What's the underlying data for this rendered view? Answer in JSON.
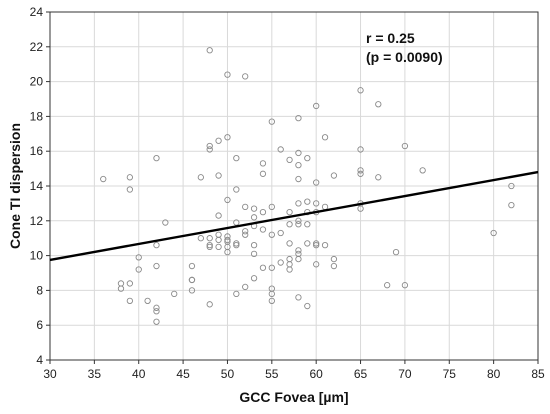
{
  "chart_data": {
    "type": "scatter",
    "xlabel": "GCC Fovea [µm]",
    "ylabel": "Cone TI dispersion",
    "xlim": [
      30,
      85
    ],
    "ylim": [
      4,
      24
    ],
    "xticks": [
      "30",
      "35",
      "40",
      "45",
      "50",
      "55",
      "60",
      "65",
      "70",
      "75",
      "80",
      "85"
    ],
    "yticks": [
      "4",
      "6",
      "8",
      "10",
      "12",
      "14",
      "16",
      "18",
      "20",
      "22",
      "24"
    ],
    "grid": true,
    "annotation": {
      "r_label": "r = 0.25",
      "p_label": "(p = 0.0090)"
    },
    "regression_line": {
      "x": [
        30,
        85
      ],
      "y": [
        9.75,
        14.8
      ]
    },
    "points": {
      "x": [
        36,
        38,
        38,
        39,
        39,
        39,
        39,
        40,
        40,
        41,
        42,
        42,
        42,
        42,
        42,
        42,
        43,
        44,
        46,
        46,
        46,
        46,
        47,
        47,
        48,
        48,
        48,
        48,
        48,
        48,
        48,
        49,
        49,
        49,
        49,
        49,
        49,
        50,
        50,
        50,
        50,
        50,
        50,
        50,
        50,
        51,
        51,
        51,
        51,
        51,
        51,
        52,
        52,
        52,
        52,
        52,
        53,
        53,
        53,
        53,
        53,
        53,
        54,
        54,
        54,
        54,
        54,
        55,
        55,
        55,
        55,
        55,
        55,
        55,
        56,
        56,
        56,
        57,
        57,
        57,
        57,
        57,
        57,
        57,
        58,
        58,
        58,
        58,
        58,
        58,
        58,
        58,
        58,
        58,
        58,
        59,
        59,
        59,
        59,
        59,
        59,
        60,
        60,
        60,
        60,
        60,
        60,
        60,
        61,
        61,
        61,
        62,
        62,
        62,
        65,
        65,
        65,
        65,
        65,
        65,
        67,
        67,
        68,
        69,
        70,
        70,
        72,
        80,
        82,
        82
      ],
      "y": [
        14.4,
        8.4,
        8.1,
        14.5,
        13.8,
        8.4,
        7.4,
        9.9,
        9.2,
        7.4,
        15.6,
        10.6,
        9.4,
        7.0,
        6.8,
        6.2,
        11.9,
        7.8,
        9.4,
        8.6,
        8.6,
        8.0,
        14.5,
        11.0,
        21.8,
        16.3,
        16.1,
        11.0,
        10.6,
        10.5,
        7.2,
        16.6,
        14.6,
        12.3,
        11.2,
        10.9,
        10.5,
        20.4,
        16.8,
        13.2,
        11.1,
        10.9,
        10.8,
        10.5,
        10.2,
        15.6,
        13.8,
        11.9,
        10.7,
        10.6,
        7.8,
        20.3,
        12.8,
        11.4,
        11.2,
        8.2,
        12.7,
        12.2,
        11.7,
        10.6,
        10.1,
        8.7,
        15.3,
        14.7,
        12.5,
        11.5,
        9.3,
        17.7,
        12.8,
        11.2,
        9.3,
        8.1,
        7.8,
        7.4,
        16.1,
        11.3,
        9.6,
        15.5,
        12.5,
        11.8,
        10.7,
        9.8,
        9.5,
        9.2,
        17.9,
        15.9,
        15.2,
        14.4,
        13.0,
        12.0,
        11.8,
        10.3,
        10.1,
        9.8,
        7.6,
        15.6,
        13.1,
        12.5,
        11.8,
        10.7,
        7.1,
        18.6,
        14.2,
        13.0,
        12.5,
        10.7,
        10.6,
        9.5,
        16.8,
        12.8,
        10.6,
        14.6,
        9.8,
        9.4,
        19.5,
        16.1,
        14.9,
        14.7,
        13.0,
        12.7,
        18.7,
        14.5,
        8.3,
        10.2,
        16.3,
        8.3,
        14.9,
        11.3,
        14.0,
        12.9
      ]
    }
  }
}
